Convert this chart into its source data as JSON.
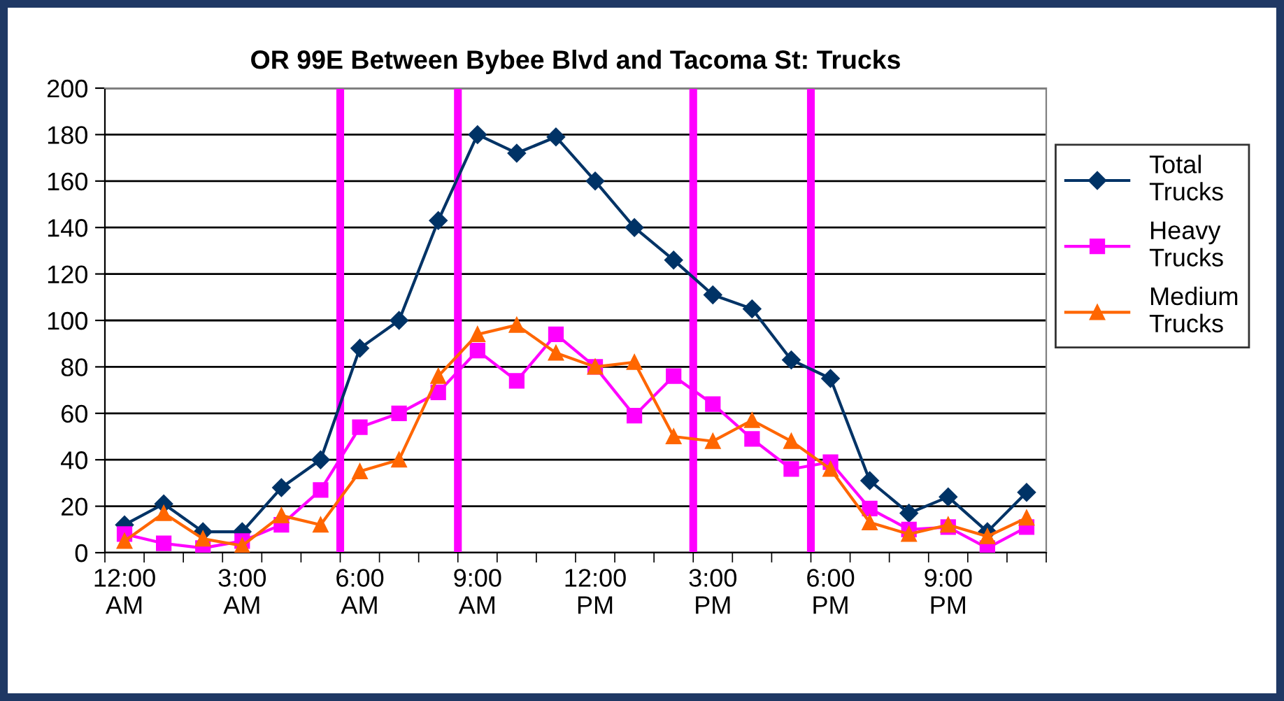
{
  "chart_data": {
    "type": "line",
    "title": "OR 99E Between Bybee Blvd and Tacoma St: Trucks",
    "categories": [
      "12:00\nAM",
      null,
      null,
      "3:00\nAM",
      null,
      null,
      "6:00\nAM",
      null,
      null,
      "9:00\nAM",
      null,
      null,
      "12:00\nPM",
      null,
      null,
      "3:00\nPM",
      null,
      null,
      "6:00\nPM",
      null,
      null,
      "9:00\nPM",
      null,
      null
    ],
    "series": [
      {
        "name": "Total Trucks",
        "color": "#003366",
        "marker": "diamond",
        "values": [
          12,
          21,
          9,
          9,
          28,
          40,
          88,
          100,
          143,
          180,
          172,
          179,
          160,
          140,
          126,
          111,
          105,
          83,
          75,
          31,
          17,
          24,
          9,
          26
        ]
      },
      {
        "name": "Heavy Trucks",
        "color": "#ff00ff",
        "marker": "square",
        "values": [
          8,
          4,
          2,
          5,
          12,
          27,
          54,
          60,
          69,
          87,
          74,
          94,
          80,
          59,
          76,
          64,
          49,
          36,
          39,
          19,
          10,
          11,
          2,
          11
        ]
      },
      {
        "name": "Medium Trucks",
        "color": "#ff6600",
        "marker": "triangle",
        "values": [
          5,
          17,
          6,
          3,
          16,
          12,
          35,
          40,
          76,
          94,
          98,
          86,
          80,
          82,
          50,
          48,
          57,
          48,
          36,
          13,
          8,
          12,
          7,
          15
        ]
      }
    ],
    "ylim": [
      0,
      200
    ],
    "yticks": [
      0,
      20,
      40,
      60,
      80,
      100,
      120,
      140,
      160,
      180,
      200
    ],
    "grid": "y",
    "legend": "right"
  }
}
